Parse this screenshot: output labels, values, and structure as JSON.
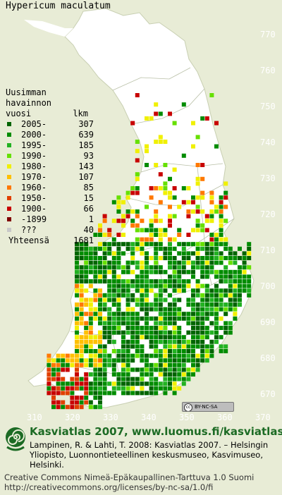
{
  "map": {
    "species": "Hypericum maculatum",
    "y_ticks": [
      "770",
      "760",
      "750",
      "740",
      "730",
      "720",
      "710",
      "700",
      "690",
      "680",
      "670"
    ],
    "x_ticks": [
      "310",
      "320",
      "330",
      "340",
      "350",
      "360",
      "370"
    ],
    "background_color": "#e8ecd6",
    "land_color": "#ffffff",
    "tick_color": "#ffffff"
  },
  "legend": {
    "heading_line1": "Uusimman",
    "heading_line2": "havainnon",
    "heading_col1": "vuosi",
    "heading_col2": "lkm",
    "rows": [
      {
        "period": "2005-",
        "count": "307",
        "color": "#006400"
      },
      {
        "period": "2000-",
        "count": "639",
        "color": "#008c00"
      },
      {
        "period": "1995-",
        "count": "185",
        "color": "#22b222"
      },
      {
        "period": "1990-",
        "count": "93",
        "color": "#66e000"
      },
      {
        "period": "1980-",
        "count": "143",
        "color": "#f0f000"
      },
      {
        "period": "1970-",
        "count": "107",
        "color": "#ffc000"
      },
      {
        "period": "1960-",
        "count": "85",
        "color": "#ff7800"
      },
      {
        "period": "1950-",
        "count": "15",
        "color": "#e04000"
      },
      {
        "period": "1900-",
        "count": "66",
        "color": "#c80000"
      },
      {
        "period": "-1899",
        "count": "1",
        "color": "#800000"
      },
      {
        "period": "???",
        "count": "40",
        "color": "#c8c8c8"
      }
    ],
    "total_label": "Yhteensä",
    "total_count": "1681"
  },
  "badge": {
    "label": "BY-NC-SA",
    "icon": "cc-icon"
  },
  "footer": {
    "title": "Kasviatlas 2007, www.luomus.fi/kasviatlas",
    "citation": "Lampinen, R. & Lahti, T. 2008: Kasviatlas 2007. – Helsingin Yliopisto, Luonnontieteellinen keskusmuseo, Kasvimuseo, Helsinki.",
    "license_line1": "Creative Commons Nimeä-Epäkaupallinen-Tarttuva 1.0 Suomi",
    "license_line2": "http://creativecommons.org/licenses/by-nc-sa/1.0/fi",
    "logo_icon": "spiral-snail-logo-icon",
    "accent_color": "#1c6b24"
  }
}
